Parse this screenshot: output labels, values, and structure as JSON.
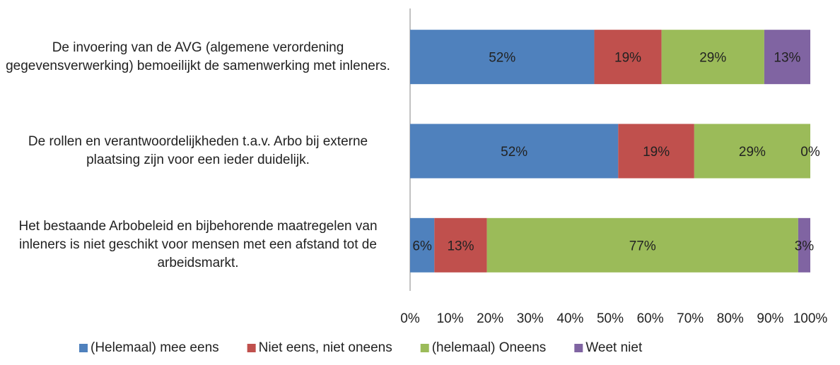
{
  "chart_data": {
    "type": "bar",
    "orientation": "horizontal",
    "stack": "percent",
    "categories": [
      "De invoering van de AVG (algemene verordening gegevensverwerking) bemoeilijkt de samenwerking met inleners.",
      "De rollen en verantwoordelijkheden t.a.v. Arbo bij externe plaatsing zijn voor een ieder duidelijk.",
      "Het bestaande Arbobeleid en bijbehorende maatregelen van inleners is niet geschikt voor mensen met een afstand tot de arbeidsmarkt."
    ],
    "series": [
      {
        "name": "(Helemaal) mee eens",
        "color": "#4f81bd",
        "values": [
          52,
          52,
          6
        ],
        "value_labels": [
          "52%",
          "52%",
          "6%"
        ]
      },
      {
        "name": "Niet eens, niet oneens",
        "color": "#c0504d",
        "values": [
          19,
          19,
          13
        ],
        "value_labels": [
          "19%",
          "19%",
          "13%"
        ]
      },
      {
        "name": "(helemaal) Oneens",
        "color": "#9bbb59",
        "values": [
          29,
          29,
          77
        ],
        "value_labels": [
          "29%",
          "29%",
          "77%"
        ]
      },
      {
        "name": "Weet niet",
        "color": "#8064a2",
        "values": [
          13,
          0,
          3
        ],
        "value_labels": [
          "13%",
          "0%",
          "3%"
        ]
      }
    ],
    "xlim": [
      0,
      100
    ],
    "xticks": [
      {
        "value": 0,
        "label": "0%"
      },
      {
        "value": 10,
        "label": "10%"
      },
      {
        "value": 20,
        "label": "20%"
      },
      {
        "value": 30,
        "label": "30%"
      },
      {
        "value": 40,
        "label": "40%"
      },
      {
        "value": 50,
        "label": "50%"
      },
      {
        "value": 60,
        "label": "60%"
      },
      {
        "value": 70,
        "label": "70%"
      },
      {
        "value": 80,
        "label": "80%"
      },
      {
        "value": 90,
        "label": "90%"
      },
      {
        "value": 100,
        "label": "100%"
      }
    ],
    "legend": "bottom",
    "grid": false
  }
}
